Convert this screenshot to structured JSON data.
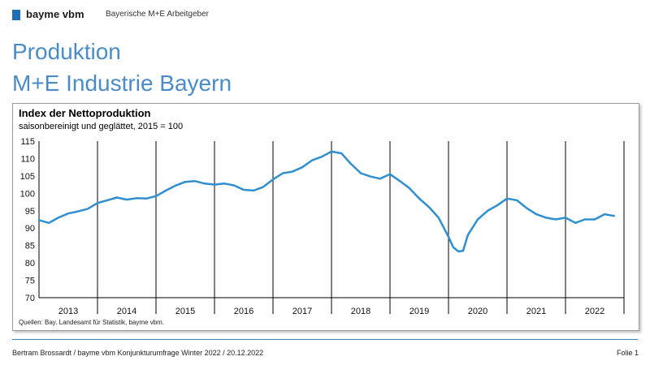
{
  "header": {
    "brand_name": "bayme vbm",
    "brand_tagline": "Bayerische M+E Arbeitgeber",
    "brand_color": "#1f6fb5"
  },
  "slide": {
    "title": "Produktion",
    "subtitle": "M+E Industrie Bayern",
    "title_color": "#4a8bc8"
  },
  "chart_data": {
    "type": "line",
    "title": "Index der Nettoproduktion",
    "subtitle": "saisonbereinigt und geglättet, 2015 = 100",
    "ylim": [
      70,
      115
    ],
    "yticks": [
      70,
      75,
      80,
      85,
      90,
      95,
      100,
      105,
      110,
      115
    ],
    "year_labels": [
      "2013",
      "2014",
      "2015",
      "2016",
      "2017",
      "2018",
      "2019",
      "2020",
      "2021",
      "2022"
    ],
    "xlim": [
      2013.0,
      2023.0
    ],
    "line_color": "#2f8fcf",
    "grid": "vertical year separators",
    "source": "Quellen: Bay. Landesamt für Statistik, bayme vbm.",
    "series": [
      {
        "x": [
          2013.0,
          2013.17,
          2013.33,
          2013.5,
          2013.67,
          2013.83,
          2014.0,
          2014.17,
          2014.33,
          2014.5,
          2014.67,
          2014.83,
          2015.0,
          2015.17,
          2015.33,
          2015.5,
          2015.67,
          2015.83,
          2016.0,
          2016.17,
          2016.33,
          2016.5,
          2016.67,
          2016.83,
          2017.0,
          2017.17,
          2017.33,
          2017.5,
          2017.67,
          2017.83,
          2018.0,
          2018.17,
          2018.33,
          2018.5,
          2018.67,
          2018.83,
          2019.0,
          2019.17,
          2019.33,
          2019.5,
          2019.67,
          2019.83,
          2020.0,
          2020.08,
          2020.17,
          2020.25,
          2020.33,
          2020.5,
          2020.67,
          2020.83,
          2021.0,
          2021.17,
          2021.33,
          2021.5,
          2021.67,
          2021.83,
          2022.0,
          2022.17,
          2022.33,
          2022.5,
          2022.67,
          2022.83
        ],
        "values": [
          92.3,
          91.5,
          93.0,
          94.2,
          94.8,
          95.5,
          97.2,
          98.0,
          98.8,
          98.2,
          98.6,
          98.5,
          99.2,
          100.8,
          102.2,
          103.3,
          103.5,
          102.8,
          102.5,
          102.8,
          102.3,
          101.0,
          100.8,
          101.8,
          104.0,
          105.8,
          106.2,
          107.5,
          109.5,
          110.5,
          112.0,
          111.5,
          108.5,
          105.8,
          104.8,
          104.2,
          105.5,
          103.5,
          101.5,
          98.5,
          96.0,
          93.0,
          87.5,
          84.5,
          83.3,
          83.5,
          88.0,
          92.5,
          95.0,
          96.5,
          98.5,
          98.0,
          95.8,
          94.0,
          93.0,
          92.5,
          93.0,
          91.5,
          92.5,
          92.5,
          94.0,
          93.5
        ]
      }
    ]
  },
  "footer": {
    "text": "Bertram Brossardt  /  bayme vbm Konjunkturumfrage Winter 2022 / 20.12.2022",
    "page": "Folie 1",
    "line_color": "#3a7dc0"
  }
}
